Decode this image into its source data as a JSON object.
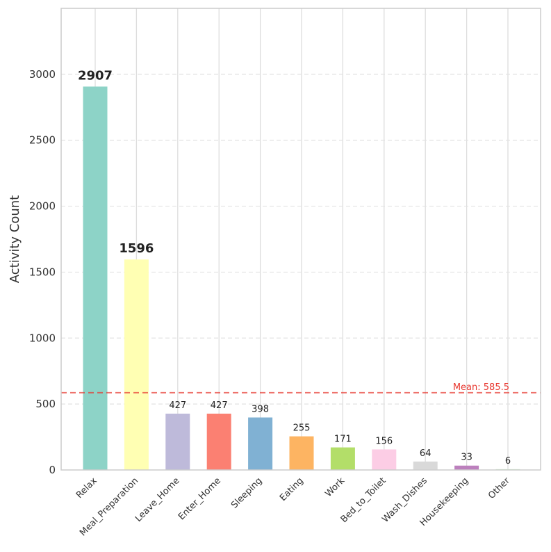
{
  "chart_data": {
    "type": "bar",
    "title": "",
    "xlabel": "",
    "ylabel": "Activity Count",
    "ylim": [
      0,
      3500
    ],
    "yticks": [
      0,
      500,
      1000,
      1500,
      2000,
      2500,
      3000
    ],
    "grid": true,
    "categories": [
      "Relax",
      "Meal_Preparation",
      "Leave_Home",
      "Enter_Home",
      "Sleeping",
      "Eating",
      "Work",
      "Bed_to_Toilet",
      "Wash_Dishes",
      "Housekeeping",
      "Other"
    ],
    "values": [
      2907,
      1596,
      427,
      427,
      398,
      255,
      171,
      156,
      64,
      33,
      6
    ],
    "data_labels": [
      "2907",
      "1596",
      "427",
      "427",
      "398",
      "255",
      "171",
      "156",
      "64",
      "33",
      "6"
    ],
    "colors": [
      "#8dd3c7",
      "#ffffb3",
      "#bebada",
      "#fb8072",
      "#80b1d3",
      "#fdb462",
      "#b3de69",
      "#fccde5",
      "#d9d9d9",
      "#bc80bd",
      "#ccebc5"
    ],
    "mean_line": {
      "value": 585.5,
      "label": "Mean: 585.5",
      "color": "#e8372f"
    }
  }
}
